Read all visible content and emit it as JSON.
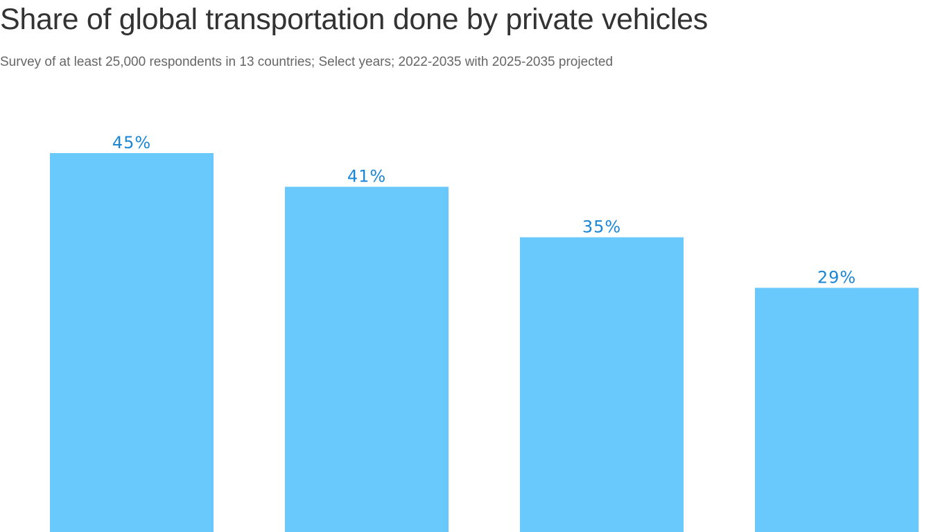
{
  "colors": {
    "bar": "#69c9fd",
    "label": "#1b86d6",
    "title": "#333333",
    "subtitle": "#666666"
  },
  "chart_data": {
    "type": "bar",
    "title": "Share of global transportation done by private vehicles",
    "subtitle": "Survey of at least 25,000 respondents in 13 countries; Select years; 2022-2035 with 2025-2035 projected",
    "values": [
      45,
      41,
      35,
      29
    ],
    "data_labels": [
      "45%",
      "41%",
      "35%",
      "29%"
    ],
    "unit": "%",
    "ylim": [
      0,
      45
    ],
    "grid": false,
    "legend": "none"
  }
}
